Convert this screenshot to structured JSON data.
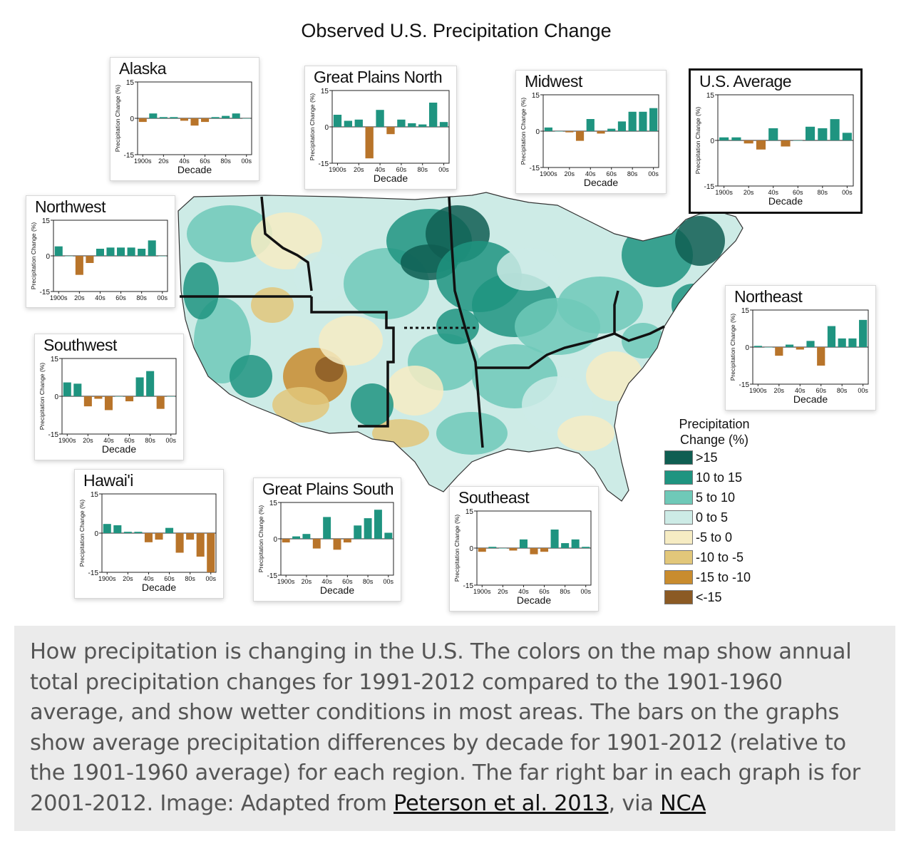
{
  "title": "Observed U.S. Precipitation Change",
  "legend": {
    "title_line1": "Precipitation",
    "title_line2": "Change (%)",
    "items": [
      {
        "label": ">15",
        "color": "#0f5e52"
      },
      {
        "label": "10 to 15",
        "color": "#1f9480"
      },
      {
        "label": "5 to 10",
        "color": "#6fc9b8"
      },
      {
        "label": "0 to 5",
        "color": "#cdebe6"
      },
      {
        "label": "-5 to 0",
        "color": "#f6ecc3"
      },
      {
        "label": "-10 to -5",
        "color": "#e2c77a"
      },
      {
        "label": "-15 to -10",
        "color": "#c98c2e"
      },
      {
        "label": "<-15",
        "color": "#8b5a24"
      }
    ]
  },
  "colors": {
    "positive_bar": "#1f9480",
    "negative_bar": "#b8742a"
  },
  "chart_data": [
    {
      "type": "bar",
      "title": "Alaska",
      "xlabel": "Decade",
      "ylabel": "Precipitation Change (%)",
      "ylim": [
        -15,
        15
      ],
      "yticks": [
        "15",
        "0",
        "-15"
      ],
      "x_tick_labels": [
        "1900s",
        "20s",
        "40s",
        "60s",
        "80s",
        "00s"
      ],
      "categories": [
        "1900s",
        "1910s",
        "1920s",
        "1930s",
        "1940s",
        "1950s",
        "1960s",
        "1970s",
        "1980s",
        "1990s",
        "2000s"
      ],
      "values": [
        -1.5,
        2,
        0.5,
        0.5,
        -1,
        -3,
        -1.5,
        0.5,
        1,
        2,
        0
      ]
    },
    {
      "type": "bar",
      "title": "Great Plains North",
      "xlabel": "Decade",
      "ylabel": "Precipitation Change (%)",
      "ylim": [
        -15,
        15
      ],
      "yticks": [
        "15",
        "0",
        "-15"
      ],
      "x_tick_labels": [
        "1900s",
        "20s",
        "40s",
        "60s",
        "80s",
        "00s"
      ],
      "categories": [
        "1900s",
        "1910s",
        "1920s",
        "1930s",
        "1940s",
        "1950s",
        "1960s",
        "1970s",
        "1980s",
        "1990s",
        "2000s"
      ],
      "values": [
        5,
        2.5,
        3,
        -13,
        7,
        -3,
        3,
        1.5,
        1,
        10,
        2
      ]
    },
    {
      "type": "bar",
      "title": "Midwest",
      "xlabel": "Decade",
      "ylabel": "Precipitation Change (%)",
      "ylim": [
        -15,
        15
      ],
      "yticks": [
        "15",
        "0",
        "-15"
      ],
      "x_tick_labels": [
        "1900s",
        "20s",
        "40s",
        "60s",
        "80s",
        "00s"
      ],
      "categories": [
        "1900s",
        "1910s",
        "1920s",
        "1930s",
        "1940s",
        "1950s",
        "1960s",
        "1970s",
        "1980s",
        "1990s",
        "2000s"
      ],
      "values": [
        1.5,
        0,
        -0.5,
        -4,
        5,
        -1,
        1,
        4,
        8,
        8,
        9.5
      ]
    },
    {
      "type": "bar",
      "title": "U.S. Average",
      "xlabel": "Decade",
      "ylabel": "Precipitation Change (%)",
      "ylim": [
        -15,
        15
      ],
      "yticks": [
        "15",
        "0",
        "-15"
      ],
      "x_tick_labels": [
        "1900s",
        "20s",
        "40s",
        "60s",
        "80s",
        "00s"
      ],
      "categories": [
        "1900s",
        "1910s",
        "1920s",
        "1930s",
        "1940s",
        "1950s",
        "1960s",
        "1970s",
        "1980s",
        "1990s",
        "2000s"
      ],
      "values": [
        1,
        1,
        -1,
        -3,
        4,
        -2,
        0,
        4.5,
        4,
        7,
        2.5
      ]
    },
    {
      "type": "bar",
      "title": "Northwest",
      "xlabel": "",
      "ylabel": "Precipitation Change (%)",
      "ylim": [
        -15,
        15
      ],
      "yticks": [
        "15",
        "0",
        "-15"
      ],
      "x_tick_labels": [
        "1900s",
        "20s",
        "40s",
        "60s",
        "80s",
        "00s"
      ],
      "categories": [
        "1900s",
        "1910s",
        "1920s",
        "1930s",
        "1940s",
        "1950s",
        "1960s",
        "1970s",
        "1980s",
        "1990s",
        "2000s"
      ],
      "values": [
        4,
        0,
        -8,
        -3,
        3,
        3.5,
        3.5,
        3.5,
        3,
        6.5,
        0
      ]
    },
    {
      "type": "bar",
      "title": "Northeast",
      "xlabel": "Decade",
      "ylabel": "Precipitation Change (%)",
      "ylim": [
        -15,
        15
      ],
      "yticks": [
        "15",
        "0",
        "-15"
      ],
      "x_tick_labels": [
        "1900s",
        "20s",
        "40s",
        "60s",
        "80s",
        "00s"
      ],
      "categories": [
        "1900s",
        "1910s",
        "1920s",
        "1930s",
        "1940s",
        "1950s",
        "1960s",
        "1970s",
        "1980s",
        "1990s",
        "2000s"
      ],
      "values": [
        0.5,
        0,
        -3.5,
        1,
        -1,
        2.5,
        -7.5,
        8.5,
        3.5,
        3.5,
        11
      ]
    },
    {
      "type": "bar",
      "title": "Southwest",
      "xlabel": "Decade",
      "ylabel": "Precipitation Change (%)",
      "ylim": [
        -15,
        15
      ],
      "yticks": [
        "15",
        "0",
        "-15"
      ],
      "x_tick_labels": [
        "1900s",
        "20s",
        "40s",
        "60s",
        "80s",
        "00s"
      ],
      "categories": [
        "1900s",
        "1910s",
        "1920s",
        "1930s",
        "1940s",
        "1950s",
        "1960s",
        "1970s",
        "1980s",
        "1990s",
        "2000s"
      ],
      "values": [
        5.5,
        5,
        -4,
        -1,
        -5.5,
        0,
        -2,
        7.5,
        10,
        -5,
        0
      ]
    },
    {
      "type": "bar",
      "title": "Hawai'i",
      "xlabel": "Decade",
      "ylabel": "Precipitation Change (%)",
      "ylim": [
        -15,
        15
      ],
      "yticks": [
        "15",
        "0",
        "-15"
      ],
      "x_tick_labels": [
        "1900s",
        "20s",
        "40s",
        "60s",
        "80s",
        "00s"
      ],
      "categories": [
        "1900s",
        "1910s",
        "1920s",
        "1930s",
        "1940s",
        "1950s",
        "1960s",
        "1970s",
        "1980s",
        "1990s",
        "2000s"
      ],
      "values": [
        3.5,
        3,
        0.5,
        0.5,
        -3.5,
        -2.5,
        2,
        -7.5,
        -2.5,
        -9,
        -15
      ]
    },
    {
      "type": "bar",
      "title": "Great Plains South",
      "xlabel": "Decade",
      "ylabel": "Precipitation Change (%)",
      "ylim": [
        -15,
        15
      ],
      "yticks": [
        "15",
        "0",
        "-15"
      ],
      "x_tick_labels": [
        "1900s",
        "20s",
        "40s",
        "60s",
        "80s",
        "00s"
      ],
      "categories": [
        "1900s",
        "1910s",
        "1920s",
        "1930s",
        "1940s",
        "1950s",
        "1960s",
        "1970s",
        "1980s",
        "1990s",
        "2000s"
      ],
      "values": [
        -1.5,
        1,
        2,
        -4,
        9,
        -4.5,
        -1.5,
        5.5,
        8.5,
        12,
        2.5
      ]
    },
    {
      "type": "bar",
      "title": "Southeast",
      "xlabel": "Decade",
      "ylabel": "Precipitation Change (%)",
      "ylim": [
        -15,
        15
      ],
      "yticks": [
        "15",
        "0",
        "-15"
      ],
      "x_tick_labels": [
        "1900s",
        "20s",
        "40s",
        "60s",
        "80s",
        "00s"
      ],
      "categories": [
        "1900s",
        "1910s",
        "1920s",
        "1930s",
        "1940s",
        "1950s",
        "1960s",
        "1970s",
        "1980s",
        "1990s",
        "2000s"
      ],
      "values": [
        -1.5,
        0.5,
        0,
        -1,
        3.5,
        -2.5,
        -1.5,
        7.5,
        2,
        3.5,
        0.5
      ]
    }
  ],
  "caption": {
    "text": "How precipitation is changing in the U.S. The colors on the map show annual total precipitation changes for 1991-2012 compared to the 1901-1960 average, and show wetter conditions in most areas. The bars on the graphs show average precipitation differences by decade for 1901-2012 (relative to the 1901-1960 average) for each region. The far right bar in each graph is for 2001-2012. Image: Adapted from ",
    "link1": "Peterson et al. 2013",
    "between": ", via ",
    "link2": "NCA"
  }
}
